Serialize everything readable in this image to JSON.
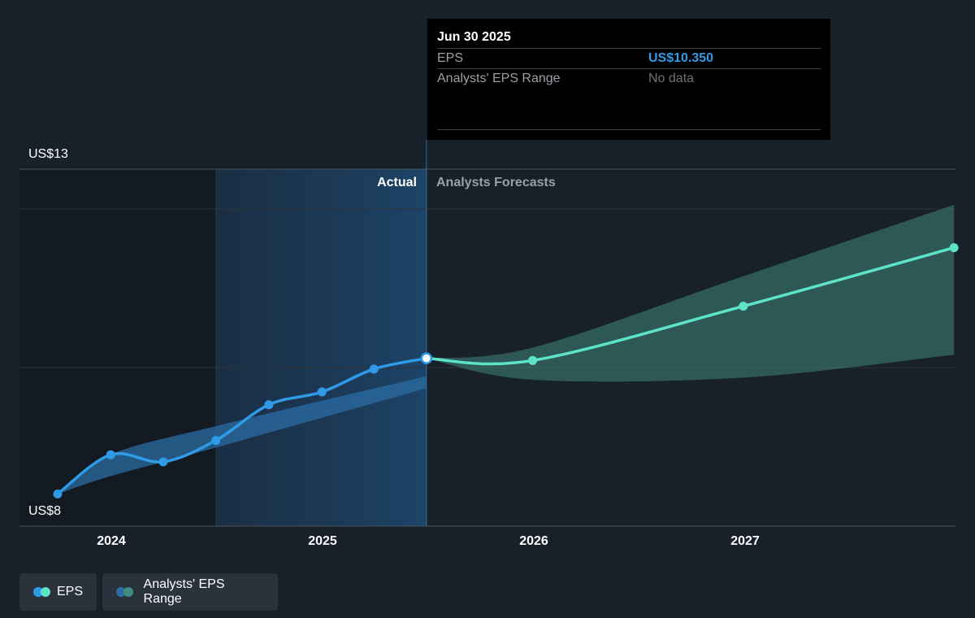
{
  "chart_data": {
    "type": "line",
    "y_axis": {
      "top_label": "US$13",
      "bottom_label": "US$8",
      "ylim": [
        8,
        13
      ]
    },
    "x_axis": {
      "ticks": [
        "2024",
        "2025",
        "2026",
        "2027"
      ]
    },
    "regions": {
      "actual": "Actual",
      "forecast": "Analysts Forecasts"
    },
    "series": [
      {
        "name": "EPS",
        "color": "#2f9be6",
        "x": [
          "2023-09-30",
          "2023-12-31",
          "2024-03-31",
          "2024-06-30",
          "2024-09-30",
          "2024-12-31",
          "2025-03-31",
          "2025-06-30"
        ],
        "values": [
          8.45,
          9.0,
          8.9,
          9.2,
          9.7,
          9.88,
          10.2,
          10.35
        ]
      },
      {
        "name": "EPS Forecast",
        "color": "#5de4c7",
        "x": [
          "2025-06-30",
          "2025-12-31",
          "2026-12-31",
          "2027-12-31"
        ],
        "values": [
          10.35,
          10.32,
          11.08,
          11.9
        ]
      }
    ],
    "ranges": [
      {
        "name": "Analysts' EPS Range",
        "x": [
          "2023-09-30",
          "2023-12-31",
          "2024-06-30",
          "2025-06-30"
        ],
        "low": [
          8.45,
          8.7,
          9.1,
          9.93
        ],
        "high": [
          8.45,
          9.0,
          9.4,
          10.1
        ]
      },
      {
        "name": "Analysts' EPS Range",
        "x": [
          "2025-06-30",
          "2025-12-31",
          "2026-12-31",
          "2027-12-31"
        ],
        "low": [
          10.35,
          10.05,
          10.08,
          10.4
        ],
        "high": [
          10.35,
          10.5,
          11.5,
          12.5
        ]
      }
    ]
  },
  "tooltip": {
    "date": "Jun 30 2025",
    "rows": [
      {
        "label": "EPS",
        "value": "US$10.350"
      },
      {
        "label": "Analysts' EPS Range",
        "value": "No data"
      }
    ]
  },
  "legend": [
    {
      "label": "EPS",
      "colors": [
        "#2f9be6",
        "#5de4c7"
      ]
    },
    {
      "label": "Analysts' EPS Range",
      "colors": [
        "#2c6ea3",
        "#3e8f80"
      ]
    }
  ],
  "colors": {
    "background": "#18202a",
    "eps": "#2f9be6",
    "forecast": "#5de4c7"
  }
}
